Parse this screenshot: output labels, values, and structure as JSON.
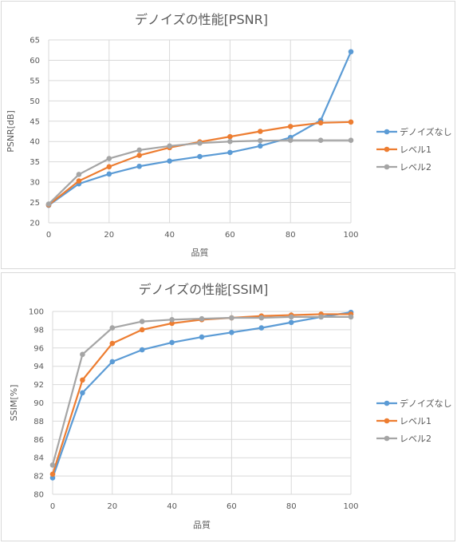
{
  "chart_data": [
    {
      "type": "line",
      "title": "デノイズの性能[PSNR]",
      "xlabel": "品質",
      "ylabel": "PSNR[dB]",
      "xlim": [
        0,
        100
      ],
      "ylim": [
        20,
        65
      ],
      "x_ticks": [
        0,
        20,
        40,
        60,
        80,
        100
      ],
      "y_ticks": [
        20,
        25,
        30,
        35,
        40,
        45,
        50,
        55,
        60,
        65
      ],
      "x": [
        0,
        10,
        20,
        30,
        40,
        50,
        60,
        70,
        80,
        90,
        100
      ],
      "grid": "vertical and horizontal",
      "legend": "right",
      "series": [
        {
          "name": "デノイズなし",
          "color": "#5b9bd5",
          "values": [
            24.3,
            29.6,
            32.0,
            33.9,
            35.2,
            36.3,
            37.3,
            38.9,
            41.0,
            45.2,
            62.1
          ]
        },
        {
          "name": "レベル1",
          "color": "#ed7d31",
          "values": [
            24.4,
            30.3,
            33.8,
            36.6,
            38.5,
            39.9,
            41.2,
            42.5,
            43.7,
            44.6,
            44.8
          ]
        },
        {
          "name": "レベル2",
          "color": "#a5a5a5",
          "values": [
            24.6,
            31.9,
            35.8,
            37.9,
            38.9,
            39.6,
            40.0,
            40.2,
            40.3,
            40.3,
            40.3
          ]
        }
      ]
    },
    {
      "type": "line",
      "title": "デノイズの性能[SSIM]",
      "xlabel": "品質",
      "ylabel": "SSIM[%]",
      "xlim": [
        0,
        100
      ],
      "ylim": [
        80,
        100
      ],
      "x_ticks": [
        0,
        20,
        40,
        60,
        80,
        100
      ],
      "y_ticks": [
        80,
        82,
        84,
        86,
        88,
        90,
        92,
        94,
        96,
        98,
        100
      ],
      "x": [
        0,
        10,
        20,
        30,
        40,
        50,
        60,
        70,
        80,
        90,
        100
      ],
      "grid": "vertical and horizontal",
      "legend": "right",
      "series": [
        {
          "name": "デノイズなし",
          "color": "#5b9bd5",
          "values": [
            81.8,
            91.1,
            94.5,
            95.8,
            96.6,
            97.2,
            97.7,
            98.2,
            98.8,
            99.4,
            99.9
          ]
        },
        {
          "name": "レベル1",
          "color": "#ed7d31",
          "values": [
            82.2,
            92.5,
            96.5,
            98.0,
            98.7,
            99.1,
            99.3,
            99.5,
            99.6,
            99.7,
            99.7
          ]
        },
        {
          "name": "レベル2",
          "color": "#a5a5a5",
          "values": [
            83.2,
            95.3,
            98.2,
            98.9,
            99.1,
            99.2,
            99.3,
            99.3,
            99.4,
            99.4,
            99.4
          ]
        }
      ]
    }
  ]
}
